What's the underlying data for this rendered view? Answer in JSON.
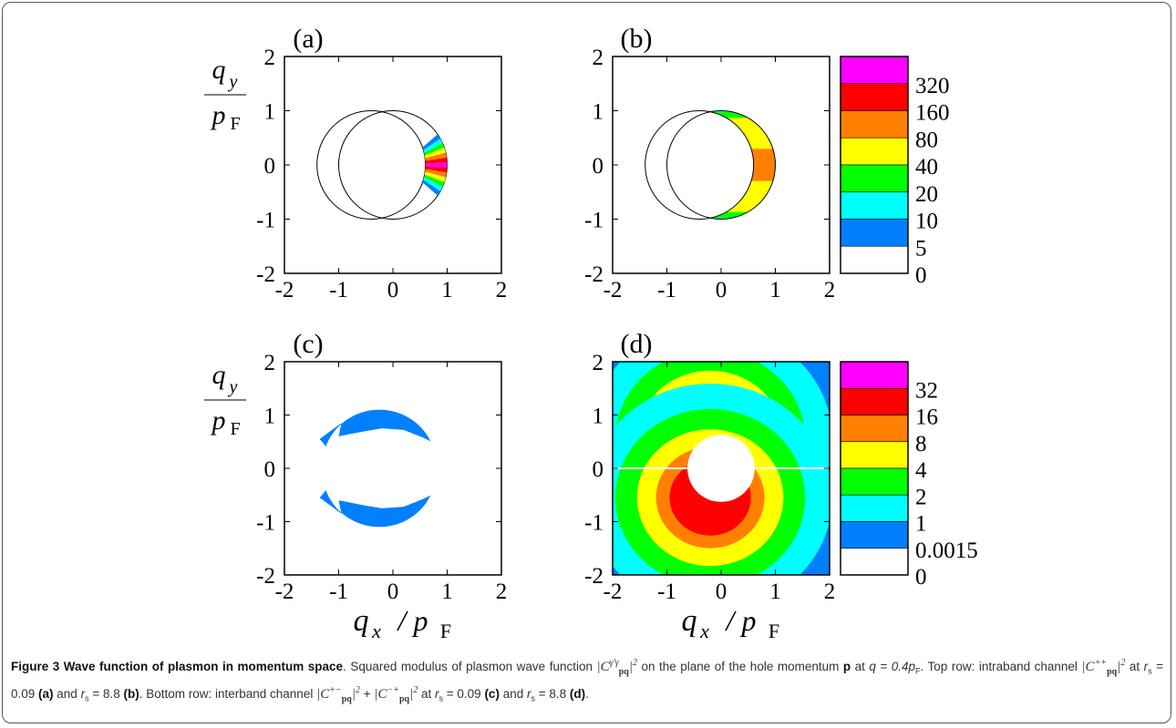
{
  "figure": {
    "panels": [
      {
        "label": "(a)",
        "description_tag": "intraband r_s=0.09"
      },
      {
        "label": "(b)",
        "description_tag": "intraband r_s=8.8"
      },
      {
        "label": "(c)",
        "description_tag": "interband r_s=0.09"
      },
      {
        "label": "(d)",
        "description_tag": "interband r_s=8.8"
      }
    ],
    "ylabel_num": "q",
    "ylabel_num_sub": "y",
    "ylabel_den": "p",
    "ylabel_den_sub": "F",
    "xlabel": "q",
    "xlabel_sub": "x",
    "xlabel_den": "/ p",
    "xlabel_den_sub": "F",
    "colorbar_top": [
      "320",
      "160",
      "80",
      "40",
      "20",
      "10",
      "5",
      "0"
    ],
    "colorbar_bottom": [
      "32",
      "16",
      "8",
      "4",
      "2",
      "1",
      "0.0015",
      "0"
    ],
    "colorbar_colors": [
      "#ff00ff",
      "#ff0000",
      "#ff8000",
      "#ffff00",
      "#00ff00",
      "#00ffff",
      "#0080ff",
      "#ffffff"
    ]
  },
  "chart_data": [
    {
      "type": "heatmap",
      "panel": "(a)",
      "xlim": [
        -2,
        2
      ],
      "ylim": [
        -2,
        2
      ],
      "xticks": [
        -2,
        -1,
        0,
        1,
        2
      ],
      "yticks": [
        -2,
        -1,
        0,
        1,
        2
      ],
      "ylabel": "q_y / p_F"
    },
    {
      "type": "heatmap",
      "panel": "(b)",
      "xlim": [
        -2,
        2
      ],
      "ylim": [
        -2,
        2
      ],
      "xticks": [
        -2,
        -1,
        0,
        1,
        2
      ],
      "yticks": [
        -2,
        -1,
        0,
        1,
        2
      ],
      "colorbar_levels": [
        0,
        5,
        10,
        20,
        40,
        80,
        160,
        320
      ]
    },
    {
      "type": "heatmap",
      "panel": "(c)",
      "xlim": [
        -2,
        2
      ],
      "ylim": [
        -2,
        2
      ],
      "xticks": [
        -2,
        -1,
        0,
        1,
        2
      ],
      "yticks": [
        -2,
        -1,
        0,
        1,
        2
      ],
      "xlabel": "q_x / p_F",
      "ylabel": "q_y / p_F"
    },
    {
      "type": "heatmap",
      "panel": "(d)",
      "xlim": [
        -2,
        2
      ],
      "ylim": [
        -2,
        2
      ],
      "xticks": [
        -2,
        -1,
        0,
        1,
        2
      ],
      "yticks": [
        -2,
        -1,
        0,
        1,
        2
      ],
      "xlabel": "q_x / p_F",
      "colorbar_levels": [
        0,
        0.0015,
        1,
        2,
        4,
        8,
        16,
        32
      ]
    }
  ],
  "caption": {
    "title": "Figure 3 Wave function of plasmon in momentum space",
    "t1": ". Squared modulus of plasmon wave function ",
    "t2": " on the plane of the hole momentum ",
    "p_bold": "p",
    "t3": " at ",
    "q_expr": "q = 0.4p",
    "q_sub": "F",
    "t4": ". Top row: intraband channel ",
    "t5": " at ",
    "rs_a": "r",
    "rs_sub": "s",
    "val_a": " = 0.09 ",
    "lab_a": "(a)",
    "and1": " and ",
    "val_b": " = 8.8 ",
    "lab_b": "(b)",
    "t6": ". Bottom row: interband channel ",
    "t7": " at ",
    "val_c": " = 0.09 ",
    "lab_c": "(c)",
    "and2": " and ",
    "val_d": " = 8.8 ",
    "lab_d": "(d)",
    "end": ".",
    "plus": " + ",
    "sym_C": "C",
    "sym_pq": "pq",
    "sup_gg": "γ′γ",
    "sup_pp": "++",
    "sup_pm": "+−",
    "sup_mp": "−+",
    "sq": "2"
  }
}
